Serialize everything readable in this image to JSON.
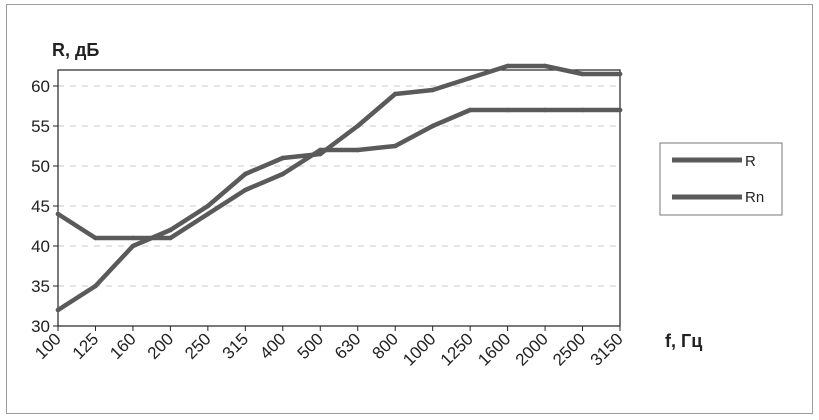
{
  "chart_data": {
    "type": "line",
    "categories": [
      "100",
      "125",
      "160",
      "200",
      "250",
      "315",
      "400",
      "500",
      "630",
      "800",
      "1000",
      "1250",
      "1600",
      "2000",
      "2500",
      "3150"
    ],
    "series": [
      {
        "name": "R",
        "values": [
          32,
          35,
          40,
          42,
          45,
          49,
          51,
          51.5,
          55,
          59,
          59.5,
          61,
          62.5,
          62.5,
          61.5,
          61.5
        ]
      },
      {
        "name": "Rn",
        "values": [
          44,
          41,
          41,
          41,
          44,
          47,
          49,
          52,
          52,
          52.5,
          55,
          57,
          57,
          57,
          57,
          57
        ]
      }
    ],
    "ylabel": "R, дБ",
    "xlabel": "f, Гц",
    "ylim": [
      30,
      62
    ],
    "yticks": [
      "30",
      "35",
      "40",
      "45",
      "50",
      "55",
      "60"
    ],
    "grid": "horizontal dashed",
    "legend_position": "right",
    "colors": {
      "series": "#5a5a5a",
      "axis": "#222222",
      "grid": "#c8c8c8",
      "frame": "#9a9a9a"
    }
  }
}
